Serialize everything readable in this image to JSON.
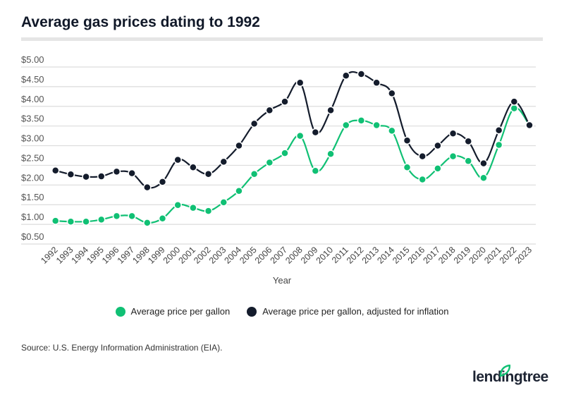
{
  "title": "Average gas prices dating to 1992",
  "chart_data": {
    "type": "line",
    "title": "Average gas prices dating to 1992",
    "xlabel": "Year",
    "ylabel": "",
    "x": [
      1992,
      1993,
      1994,
      1995,
      1996,
      1997,
      1998,
      1999,
      2000,
      2001,
      2002,
      2003,
      2004,
      2005,
      2006,
      2007,
      2008,
      2009,
      2010,
      2011,
      2012,
      2013,
      2014,
      2015,
      2016,
      2017,
      2018,
      2019,
      2020,
      2021,
      2022,
      2023
    ],
    "yticks": [
      "$0.50",
      "$1.00",
      "$1.50",
      "$2.00",
      "$2.50",
      "$3.00",
      "$3.50",
      "$4.00",
      "$4.50",
      "$5.00"
    ],
    "ylim": [
      0.5,
      5.0
    ],
    "grid": true,
    "legend_position": "bottom",
    "series": [
      {
        "name": "Average price per gallon",
        "color": "#10c074",
        "values": [
          1.09,
          1.07,
          1.07,
          1.12,
          1.21,
          1.21,
          1.04,
          1.15,
          1.49,
          1.42,
          1.34,
          1.56,
          1.85,
          2.28,
          2.57,
          2.81,
          3.25,
          2.36,
          2.79,
          3.52,
          3.64,
          3.52,
          3.38,
          2.45,
          2.14,
          2.42,
          2.73,
          2.61,
          2.18,
          3.02,
          3.95,
          3.52
        ]
      },
      {
        "name": "Average price per gallon, adjusted for inflation",
        "color": "#141c2c",
        "values": [
          2.37,
          2.27,
          2.21,
          2.22,
          2.34,
          2.3,
          1.94,
          2.08,
          2.64,
          2.45,
          2.28,
          2.59,
          3.0,
          3.56,
          3.9,
          4.12,
          4.6,
          3.34,
          3.9,
          4.78,
          4.82,
          4.6,
          4.33,
          3.13,
          2.73,
          3.0,
          3.31,
          3.11,
          2.55,
          3.39,
          4.12,
          3.52
        ]
      }
    ]
  },
  "source": "Source: U.S. Energy Information Administration (EIA).",
  "logo": {
    "text": "lendingtree",
    "color": "#10c074"
  }
}
